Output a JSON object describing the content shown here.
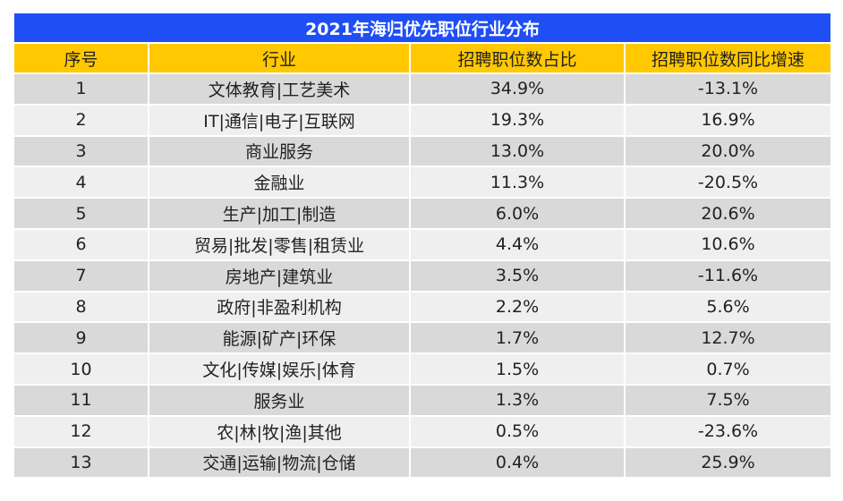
{
  "chart_data": {
    "type": "table",
    "title": "2021年海归优先职位行业分布",
    "columns": [
      "序号",
      "行业",
      "招聘职位数占比",
      "招聘职位数同比增速"
    ],
    "rows": [
      [
        "1",
        "文体教育|工艺美术",
        "34.9%",
        "-13.1%"
      ],
      [
        "2",
        "IT|通信|电子|互联网",
        "19.3%",
        "16.9%"
      ],
      [
        "3",
        "商业服务",
        "13.0%",
        "20.0%"
      ],
      [
        "4",
        "金融业",
        "11.3%",
        "-20.5%"
      ],
      [
        "5",
        "生产|加工|制造",
        "6.0%",
        "20.6%"
      ],
      [
        "6",
        "贸易|批发|零售|租赁业",
        "4.4%",
        "10.6%"
      ],
      [
        "7",
        "房地产|建筑业",
        "3.5%",
        "-11.6%"
      ],
      [
        "8",
        "政府|非盈利机构",
        "2.2%",
        "5.6%"
      ],
      [
        "9",
        "能源|矿产|环保",
        "1.7%",
        "12.7%"
      ],
      [
        "10",
        "文化|传媒|娱乐|体育",
        "1.5%",
        "0.7%"
      ],
      [
        "11",
        "服务业",
        "1.3%",
        "7.5%"
      ],
      [
        "12",
        "农|林|牧|渔|其他",
        "0.5%",
        "-23.6%"
      ],
      [
        "13",
        "交通|运输|物流|仓储",
        "0.4%",
        "25.9%"
      ]
    ],
    "colors": {
      "title_bg": "#1f4ef5",
      "header_bg": "#ffc800",
      "row_dark": "#d9d9d9",
      "row_light": "#efefef"
    }
  }
}
